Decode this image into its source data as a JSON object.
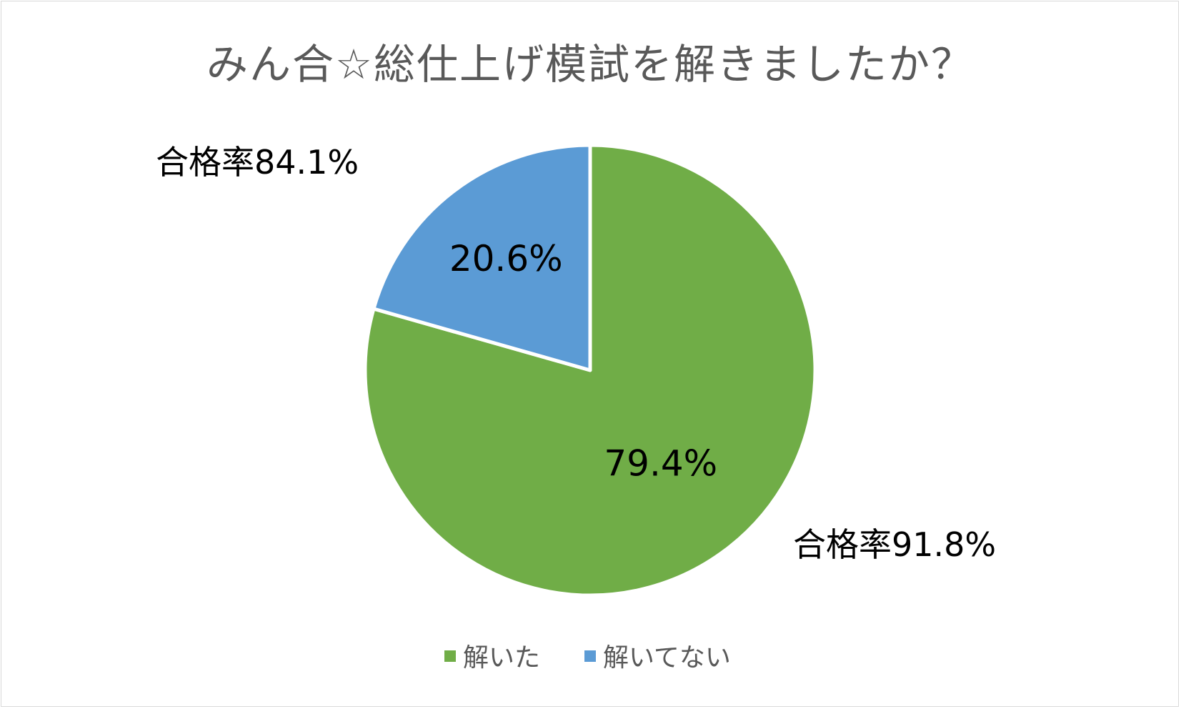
{
  "chart_data": {
    "type": "pie",
    "title": "みん合☆総仕上げ模試を解きましたか？",
    "categories": [
      "解いた",
      "解いてない"
    ],
    "values": [
      79.4,
      20.6
    ],
    "data_labels": [
      "79.4%",
      "20.6%"
    ],
    "colors": [
      "#70AD47",
      "#5B9BD5"
    ],
    "annotations": [
      "合格率91.8%",
      "合格率84.1%"
    ],
    "legend": {
      "position": "bottom",
      "items": [
        "解いた",
        "解いてない"
      ]
    }
  }
}
